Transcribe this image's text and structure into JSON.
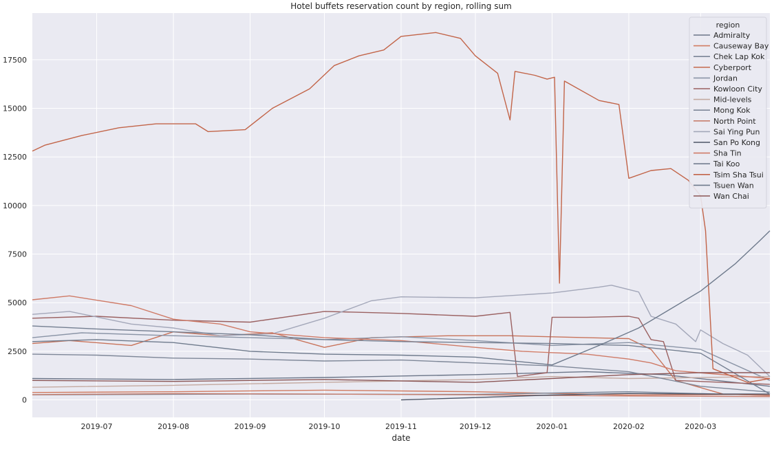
{
  "chart_data": {
    "type": "line",
    "title": "Hotel buffets reservation count by region, rolling sum",
    "xlabel": "date",
    "ylabel": "",
    "xlim": [
      "2019-06-05",
      "2020-03-29"
    ],
    "ylim": [
      -900,
      19900
    ],
    "x_ticks": [
      "2019-07",
      "2019-08",
      "2019-09",
      "2019-10",
      "2019-11",
      "2019-12",
      "2020-01",
      "2020-02",
      "2020-03"
    ],
    "y_ticks": [
      0,
      2500,
      5000,
      7500,
      10000,
      12500,
      15000,
      17500
    ],
    "grid": true,
    "legend": {
      "title": "region",
      "placement": "top-right"
    },
    "colors": {
      "background": "#eaeaf2",
      "grid": "#ffffff",
      "orange": "#c8735a",
      "blue_gray": "#6e7a8c",
      "light_gray": "#a4a8b8",
      "brown": "#8a5555"
    },
    "series": [
      {
        "name": "Admiralty",
        "color": "#6b7588",
        "points": [
          [
            "2019-06-05",
            1100
          ],
          [
            "2019-08-01",
            1050
          ],
          [
            "2019-10-01",
            1150
          ],
          [
            "2019-12-01",
            1300
          ],
          [
            "2020-01-15",
            1450
          ],
          [
            "2020-02-15",
            1300
          ],
          [
            "2020-03-29",
            700
          ]
        ]
      },
      {
        "name": "Causeway Bay",
        "color": "#d17c62",
        "points": [
          [
            "2019-06-05",
            380
          ],
          [
            "2019-08-01",
            420
          ],
          [
            "2019-10-01",
            500
          ],
          [
            "2019-12-01",
            420
          ],
          [
            "2020-02-01",
            250
          ],
          [
            "2020-03-29",
            280
          ]
        ]
      },
      {
        "name": "Chek Lap Kok",
        "color": "#7a8596",
        "points": [
          [
            "2019-06-05",
            260
          ],
          [
            "2019-09-01",
            300
          ],
          [
            "2019-12-01",
            280
          ],
          [
            "2020-02-01",
            420
          ],
          [
            "2020-03-29",
            230
          ]
        ]
      },
      {
        "name": "Cyberport",
        "color": "#c8735a",
        "points": [
          [
            "2019-06-05",
            2900
          ],
          [
            "2019-06-20",
            3050
          ],
          [
            "2019-07-15",
            2800
          ],
          [
            "2019-08-01",
            3500
          ],
          [
            "2019-08-20",
            3300
          ],
          [
            "2019-09-10",
            3450
          ],
          [
            "2019-10-01",
            2700
          ],
          [
            "2019-10-20",
            3200
          ],
          [
            "2019-11-20",
            3300
          ],
          [
            "2019-12-15",
            3300
          ],
          [
            "2020-01-15",
            3200
          ],
          [
            "2020-02-01",
            3150
          ],
          [
            "2020-02-10",
            2600
          ],
          [
            "2020-02-20",
            1000
          ],
          [
            "2020-03-10",
            300
          ],
          [
            "2020-03-29",
            220
          ]
        ]
      },
      {
        "name": "Jordan",
        "color": "#8a94a6",
        "points": [
          [
            "2019-06-05",
            3200
          ],
          [
            "2019-06-25",
            3450
          ],
          [
            "2019-08-01",
            3300
          ],
          [
            "2019-09-01",
            3200
          ],
          [
            "2019-10-01",
            3100
          ],
          [
            "2019-11-01",
            3250
          ],
          [
            "2019-12-01",
            3050
          ],
          [
            "2020-01-01",
            2800
          ],
          [
            "2020-02-01",
            2950
          ],
          [
            "2020-03-01",
            2600
          ],
          [
            "2020-03-29",
            1000
          ]
        ]
      },
      {
        "name": "Kowloon City",
        "color": "#9a6060",
        "points": [
          [
            "2019-06-05",
            4200
          ],
          [
            "2019-07-01",
            4300
          ],
          [
            "2019-08-01",
            4100
          ],
          [
            "2019-09-01",
            4000
          ],
          [
            "2019-10-01",
            4550
          ],
          [
            "2019-11-01",
            4450
          ],
          [
            "2019-12-01",
            4300
          ],
          [
            "2019-12-15",
            4500
          ],
          [
            "2019-12-18",
            1200
          ],
          [
            "2019-12-30",
            1400
          ],
          [
            "2020-01-01",
            4250
          ],
          [
            "2020-01-15",
            4250
          ],
          [
            "2020-02-01",
            4300
          ],
          [
            "2020-02-05",
            4200
          ],
          [
            "2020-02-10",
            3100
          ],
          [
            "2020-02-15",
            3000
          ],
          [
            "2020-02-20",
            1000
          ],
          [
            "2020-03-29",
            800
          ]
        ]
      },
      {
        "name": "Mid-levels",
        "color": "#c4a9a0",
        "points": [
          [
            "2019-06-05",
            650
          ],
          [
            "2019-08-01",
            750
          ],
          [
            "2019-10-01",
            900
          ],
          [
            "2019-12-01",
            1050
          ],
          [
            "2020-01-01",
            1200
          ],
          [
            "2020-02-01",
            1100
          ],
          [
            "2020-03-29",
            1200
          ]
        ]
      },
      {
        "name": "Mong Kok",
        "color": "#7e8798",
        "points": [
          [
            "2019-06-05",
            2350
          ],
          [
            "2019-07-01",
            2300
          ],
          [
            "2019-08-01",
            2150
          ],
          [
            "2019-09-01",
            2100
          ],
          [
            "2019-10-01",
            2000
          ],
          [
            "2019-11-01",
            2050
          ],
          [
            "2019-12-01",
            1900
          ],
          [
            "2020-01-01",
            1750
          ],
          [
            "2020-02-01",
            1450
          ],
          [
            "2020-03-01",
            700
          ],
          [
            "2020-03-29",
            400
          ]
        ]
      },
      {
        "name": "North Point",
        "color": "#c77e6d",
        "points": [
          [
            "2019-06-05",
            270
          ],
          [
            "2019-08-01",
            320
          ],
          [
            "2019-10-01",
            300
          ],
          [
            "2019-12-01",
            260
          ],
          [
            "2020-02-01",
            200
          ],
          [
            "2020-03-29",
            170
          ]
        ]
      },
      {
        "name": "Sai Ying Pun",
        "color": "#a3a7b9",
        "points": [
          [
            "2019-06-05",
            4400
          ],
          [
            "2019-06-20",
            4550
          ],
          [
            "2019-07-15",
            3900
          ],
          [
            "2019-08-01",
            3700
          ],
          [
            "2019-08-20",
            3300
          ],
          [
            "2019-09-10",
            3400
          ],
          [
            "2019-10-01",
            4200
          ],
          [
            "2019-10-20",
            5100
          ],
          [
            "2019-11-01",
            5300
          ],
          [
            "2019-12-01",
            5250
          ],
          [
            "2020-01-01",
            5500
          ],
          [
            "2020-01-20",
            5800
          ],
          [
            "2020-01-25",
            5900
          ],
          [
            "2020-02-05",
            5550
          ],
          [
            "2020-02-10",
            4300
          ],
          [
            "2020-02-20",
            3900
          ],
          [
            "2020-02-28",
            3000
          ],
          [
            "2020-03-01",
            3600
          ],
          [
            "2020-03-10",
            2900
          ],
          [
            "2020-03-20",
            2300
          ],
          [
            "2020-03-29",
            1200
          ]
        ]
      },
      {
        "name": "San Po Kong",
        "color": "#4d5566",
        "points": [
          [
            "2019-11-01",
            0
          ],
          [
            "2019-12-01",
            120
          ],
          [
            "2020-01-01",
            250
          ],
          [
            "2020-02-01",
            330
          ],
          [
            "2020-03-01",
            300
          ],
          [
            "2020-03-29",
            300
          ]
        ]
      },
      {
        "name": "Sha Tin",
        "color": "#cf7a66",
        "points": [
          [
            "2019-06-05",
            5150
          ],
          [
            "2019-06-20",
            5350
          ],
          [
            "2019-07-15",
            4850
          ],
          [
            "2019-08-01",
            4150
          ],
          [
            "2019-08-20",
            3900
          ],
          [
            "2019-09-01",
            3500
          ],
          [
            "2019-10-01",
            3200
          ],
          [
            "2019-11-01",
            3050
          ],
          [
            "2019-12-01",
            2700
          ],
          [
            "2019-12-20",
            2500
          ],
          [
            "2020-01-15",
            2350
          ],
          [
            "2020-02-01",
            2100
          ],
          [
            "2020-02-10",
            1900
          ],
          [
            "2020-02-20",
            1500
          ],
          [
            "2020-03-29",
            1100
          ]
        ]
      },
      {
        "name": "Tai Koo",
        "color": "#737e90",
        "points": [
          [
            "2019-06-05",
            3800
          ],
          [
            "2019-07-01",
            3650
          ],
          [
            "2019-08-01",
            3500
          ],
          [
            "2019-09-01",
            3350
          ],
          [
            "2019-10-01",
            3100
          ],
          [
            "2019-11-01",
            3000
          ],
          [
            "2019-12-01",
            2950
          ],
          [
            "2020-01-01",
            2900
          ],
          [
            "2020-02-01",
            2800
          ],
          [
            "2020-03-01",
            2400
          ],
          [
            "2020-03-29",
            300
          ]
        ]
      },
      {
        "name": "Tsim Sha Tsui",
        "color": "#c26448",
        "points": [
          [
            "2019-06-05",
            12800
          ],
          [
            "2019-06-10",
            13100
          ],
          [
            "2019-06-25",
            13600
          ],
          [
            "2019-07-10",
            14000
          ],
          [
            "2019-07-25",
            14200
          ],
          [
            "2019-08-10",
            14200
          ],
          [
            "2019-08-15",
            13800
          ],
          [
            "2019-08-30",
            13900
          ],
          [
            "2019-09-10",
            15000
          ],
          [
            "2019-09-25",
            16000
          ],
          [
            "2019-10-05",
            17200
          ],
          [
            "2019-10-15",
            17700
          ],
          [
            "2019-10-25",
            18000
          ],
          [
            "2019-11-01",
            18700
          ],
          [
            "2019-11-15",
            18900
          ],
          [
            "2019-11-25",
            18600
          ],
          [
            "2019-12-01",
            17700
          ],
          [
            "2019-12-10",
            16800
          ],
          [
            "2019-12-15",
            14400
          ],
          [
            "2019-12-17",
            16900
          ],
          [
            "2019-12-25",
            16700
          ],
          [
            "2019-12-30",
            16500
          ],
          [
            "2020-01-02",
            16600
          ],
          [
            "2020-01-04",
            6000
          ],
          [
            "2020-01-06",
            16400
          ],
          [
            "2020-01-20",
            15400
          ],
          [
            "2020-01-28",
            15200
          ],
          [
            "2020-02-01",
            11400
          ],
          [
            "2020-02-10",
            11800
          ],
          [
            "2020-02-18",
            11900
          ],
          [
            "2020-02-25",
            11300
          ],
          [
            "2020-03-01",
            10500
          ],
          [
            "2020-03-03",
            8700
          ],
          [
            "2020-03-06",
            1600
          ],
          [
            "2020-03-20",
            900
          ],
          [
            "2020-03-29",
            1100
          ]
        ]
      },
      {
        "name": "Tsuen Wan",
        "color": "#6e7a8c",
        "points": [
          [
            "2019-06-05",
            3000
          ],
          [
            "2019-07-01",
            3100
          ],
          [
            "2019-08-01",
            2950
          ],
          [
            "2019-09-01",
            2500
          ],
          [
            "2019-10-01",
            2350
          ],
          [
            "2019-11-01",
            2300
          ],
          [
            "2019-12-01",
            2200
          ],
          [
            "2020-01-01",
            1800
          ],
          [
            "2020-01-20",
            2800
          ],
          [
            "2020-02-05",
            3700
          ],
          [
            "2020-03-01",
            5600
          ],
          [
            "2020-03-15",
            7000
          ],
          [
            "2020-03-25",
            8200
          ],
          [
            "2020-03-29",
            8700
          ]
        ]
      },
      {
        "name": "Wan Chai",
        "color": "#8a5555",
        "points": [
          [
            "2019-06-05",
            1000
          ],
          [
            "2019-08-01",
            950
          ],
          [
            "2019-10-01",
            1050
          ],
          [
            "2019-12-01",
            900
          ],
          [
            "2020-02-01",
            1300
          ],
          [
            "2020-03-01",
            1400
          ],
          [
            "2020-03-29",
            1400
          ]
        ]
      }
    ]
  }
}
